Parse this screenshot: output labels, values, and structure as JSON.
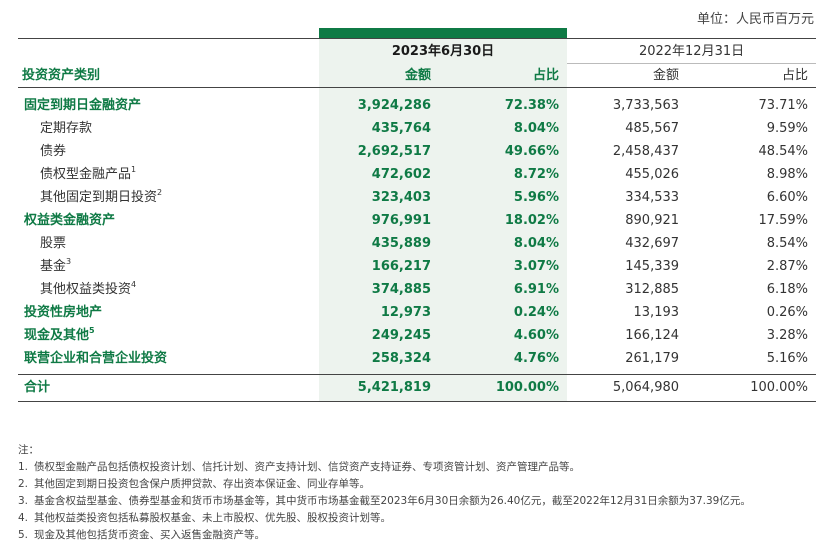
{
  "unit": "单位：人民币百万元",
  "header": {
    "category_label": "投资资产类别",
    "period_current": "2023年6月30日",
    "period_prior": "2022年12月31日",
    "amount_label": "金额",
    "ratio_label": "占比"
  },
  "rows": [
    {
      "label": "固定到期日金融资产",
      "sup": "",
      "cur_amount": "3,924,286",
      "cur_ratio": "72.38%",
      "pri_amount": "3,733,563",
      "pri_ratio": "73.71%"
    },
    {
      "label": "定期存款",
      "sup": "",
      "cur_amount": "435,764",
      "cur_ratio": "8.04%",
      "pri_amount": "485,567",
      "pri_ratio": "9.59%"
    },
    {
      "label": "债券",
      "sup": "",
      "cur_amount": "2,692,517",
      "cur_ratio": "49.66%",
      "pri_amount": "2,458,437",
      "pri_ratio": "48.54%"
    },
    {
      "label": "债权型金融产品",
      "sup": "1",
      "cur_amount": "472,602",
      "cur_ratio": "8.72%",
      "pri_amount": "455,026",
      "pri_ratio": "8.98%"
    },
    {
      "label": "其他固定到期日投资",
      "sup": "2",
      "cur_amount": "323,403",
      "cur_ratio": "5.96%",
      "pri_amount": "334,533",
      "pri_ratio": "6.60%"
    },
    {
      "label": "权益类金融资产",
      "sup": "",
      "cur_amount": "976,991",
      "cur_ratio": "18.02%",
      "pri_amount": "890,921",
      "pri_ratio": "17.59%"
    },
    {
      "label": "股票",
      "sup": "",
      "cur_amount": "435,889",
      "cur_ratio": "8.04%",
      "pri_amount": "432,697",
      "pri_ratio": "8.54%"
    },
    {
      "label": "基金",
      "sup": "3",
      "cur_amount": "166,217",
      "cur_ratio": "3.07%",
      "pri_amount": "145,339",
      "pri_ratio": "2.87%"
    },
    {
      "label": "其他权益类投资",
      "sup": "4",
      "cur_amount": "374,885",
      "cur_ratio": "6.91%",
      "pri_amount": "312,885",
      "pri_ratio": "6.18%"
    },
    {
      "label": "投资性房地产",
      "sup": "",
      "cur_amount": "12,973",
      "cur_ratio": "0.24%",
      "pri_amount": "13,193",
      "pri_ratio": "0.26%"
    },
    {
      "label": "现金及其他",
      "sup": "5",
      "cur_amount": "249,245",
      "cur_ratio": "4.60%",
      "pri_amount": "166,124",
      "pri_ratio": "3.28%"
    },
    {
      "label": "联营企业和合营企业投资",
      "sup": "",
      "cur_amount": "258,324",
      "cur_ratio": "4.76%",
      "pri_amount": "261,179",
      "pri_ratio": "5.16%"
    }
  ],
  "total": {
    "label": "合计",
    "cur_amount": "5,421,819",
    "cur_ratio": "100.00%",
    "pri_amount": "5,064,980",
    "pri_ratio": "100.00%"
  },
  "notes": {
    "title": "注：",
    "items": [
      {
        "num": "1.",
        "text": "债权型金融产品包括债权投资计划、信托计划、资产支持计划、信贷资产支持证券、专项资管计划、资产管理产品等。"
      },
      {
        "num": "2.",
        "text": "其他固定到期日投资包含保户质押贷款、存出资本保证金、同业存单等。"
      },
      {
        "num": "3.",
        "text": "基金含权益型基金、债券型基金和货币市场基金等，其中货币市场基金截至2023年6月30日余额为26.40亿元，截至2022年12月31日余额为37.39亿元。"
      },
      {
        "num": "4.",
        "text": "其他权益类投资包括私募股权基金、未上市股权、优先股、股权投资计划等。"
      },
      {
        "num": "5.",
        "text": "现金及其他包括货币资金、买入返售金融资产等。"
      }
    ]
  }
}
